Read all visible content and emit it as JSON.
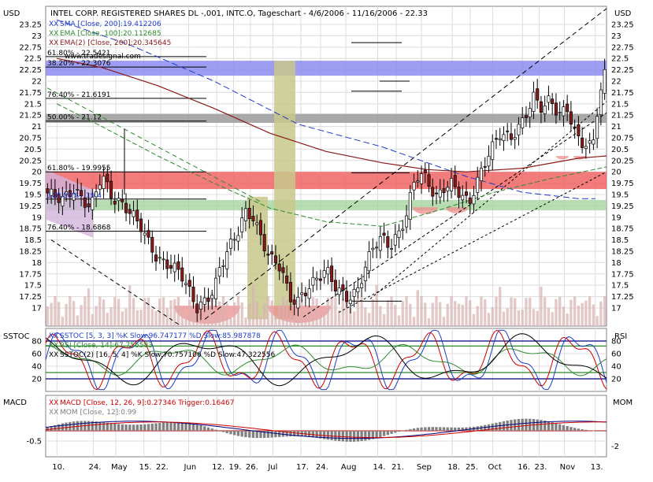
{
  "header": {
    "title": "INTEL CORP. REGISTERED SHARES DL -,001, INTC.O, Tageschart - 4/6/2006 - 11/16/2006 - 22.33",
    "axis_unit_left": "USD",
    "axis_unit_right": "USD",
    "watermark": "www.tradesignal.com"
  },
  "colors": {
    "background": "#ffffff",
    "plot_border": "#808080",
    "grid": "#dcdcdc",
    "up_candle": "#ffffff",
    "down_candle": "#8b1a1a",
    "ema100": "#2e8b2e",
    "ema200": "#8b1a1a",
    "sma200": "#1e3cc8",
    "volume": "#d8b0b0",
    "band_blue": "#8c8cf0",
    "band_red": "#f06464",
    "band_green": "#a8d4a0",
    "band_grey": "#a0a0a0",
    "band_olive": "#c8c88c",
    "band_purple": "#d2b4dc",
    "half_circle": "#f08c8c"
  },
  "fib_levels": [
    {
      "label": "61.80% - 22.5421",
      "value": 22.54
    },
    {
      "label": "38.20% - 22.3076",
      "value": 22.31
    },
    {
      "label": "76.40% - 21.6191",
      "value": 21.62
    },
    {
      "label": "50.00% - 21.12",
      "value": 21.12
    },
    {
      "label": "61.80% - 19.9955",
      "value": 20.0
    },
    {
      "label": "100.00% - 19.4",
      "value": 19.4
    },
    {
      "label": "76.40% - 18.6868",
      "value": 18.69
    }
  ],
  "indicator_labels": {
    "price": [
      {
        "prefix": "XX",
        "text": "SMA [Close, 200]:19.412206",
        "color": "#1e3cc8"
      },
      {
        "prefix": "XX",
        "text": "EMA [Close, 100]:20.112685",
        "color": "#2e8b2e"
      },
      {
        "prefix": "XX",
        "text": "EMA(2) [Close, 200]:20.345645",
        "color": "#8b1a1a"
      }
    ],
    "osc": [
      {
        "prefix": "XX",
        "text": "SSTOC [5, 3, 3] %K Slow:96.747177 %D Slow:85.987878",
        "color": "#1e3cc8"
      },
      {
        "prefix": "XX",
        "text": "RSI [Close, 14]:67.756583",
        "color": "#2e8b2e"
      },
      {
        "prefix": "XX",
        "text": "SSTOC(2) [16, 5, 4] %K Slow:70.757106 %D Slow:47.322556",
        "color": "#000000"
      }
    ],
    "macd": [
      {
        "prefix": "XX",
        "text": "MACD [Close, 12, 26, 9]:0.27346 Trigger:0.16467",
        "color": "#cc0000"
      },
      {
        "prefix": "XX",
        "text": "MOM [Close, 12]:0.99",
        "color": "#808080"
      }
    ]
  },
  "panels": {
    "stoch": {
      "label_left": "SSTOC",
      "label_right": "RSI"
    },
    "macd": {
      "label_left": "MACD",
      "label_right": "MOM"
    }
  },
  "chart_data": {
    "type": "candlestick",
    "title": "INTEL CORP. REGISTERED SHARES DL -,001, INTC.O, Tageschart - 4/6/2006 - 11/16/2006 - 22.33",
    "ylabel": "USD",
    "ylim": [
      16.6,
      23.65
    ],
    "y_ticks": [
      "23.25",
      "23",
      "22.75",
      "22.5",
      "22.25",
      "22",
      "21.75",
      "21.5",
      "21.25",
      "21",
      "20.75",
      "20.5",
      "20.25",
      "20",
      "19.75",
      "19.5",
      "19.25",
      "19",
      "18.75",
      "18.5",
      "18.25",
      "18",
      "17.75",
      "17.5",
      "17.25",
      "17"
    ],
    "x_ticks": [
      {
        "label": "10.",
        "pos": 0.02
      },
      {
        "label": "24.",
        "pos": 0.085
      },
      {
        "label": "May",
        "pos": 0.125
      },
      {
        "label": "15.",
        "pos": 0.175
      },
      {
        "label": "22.",
        "pos": 0.205
      },
      {
        "label": "Jun",
        "pos": 0.255
      },
      {
        "label": "12.",
        "pos": 0.305
      },
      {
        "label": "19.",
        "pos": 0.335
      },
      {
        "label": "26.",
        "pos": 0.365
      },
      {
        "label": "Jul",
        "pos": 0.405
      },
      {
        "label": "17.",
        "pos": 0.455
      },
      {
        "label": "24.",
        "pos": 0.49
      },
      {
        "label": "Aug",
        "pos": 0.535
      },
      {
        "label": "14.",
        "pos": 0.592
      },
      {
        "label": "21.",
        "pos": 0.625
      },
      {
        "label": "Sep",
        "pos": 0.67
      },
      {
        "label": "18.",
        "pos": 0.725
      },
      {
        "label": "25.",
        "pos": 0.757
      },
      {
        "label": "Oct",
        "pos": 0.797
      },
      {
        "label": "16.",
        "pos": 0.85
      },
      {
        "label": "23.",
        "pos": 0.88
      },
      {
        "label": "Nov",
        "pos": 0.925
      },
      {
        "label": "13.",
        "pos": 0.98
      }
    ],
    "price_path": [
      [
        0.0,
        19.55
      ],
      [
        0.03,
        19.4
      ],
      [
        0.05,
        19.6
      ],
      [
        0.08,
        19.2
      ],
      [
        0.1,
        19.95
      ],
      [
        0.12,
        19.4
      ],
      [
        0.14,
        19.25
      ],
      [
        0.155,
        19.05
      ],
      [
        0.17,
        18.8
      ],
      [
        0.185,
        18.4
      ],
      [
        0.2,
        18.05
      ],
      [
        0.22,
        17.95
      ],
      [
        0.24,
        17.8
      ],
      [
        0.255,
        17.4
      ],
      [
        0.27,
        17.0
      ],
      [
        0.285,
        17.15
      ],
      [
        0.3,
        17.4
      ],
      [
        0.31,
        17.85
      ],
      [
        0.325,
        18.3
      ],
      [
        0.34,
        18.6
      ],
      [
        0.355,
        19.1
      ],
      [
        0.37,
        19.0
      ],
      [
        0.385,
        18.5
      ],
      [
        0.4,
        18.1
      ],
      [
        0.42,
        17.9
      ],
      [
        0.435,
        17.2
      ],
      [
        0.45,
        17.15
      ],
      [
        0.465,
        17.4
      ],
      [
        0.48,
        17.6
      ],
      [
        0.5,
        17.85
      ],
      [
        0.52,
        17.4
      ],
      [
        0.54,
        17.2
      ],
      [
        0.555,
        17.35
      ],
      [
        0.57,
        17.9
      ],
      [
        0.585,
        18.4
      ],
      [
        0.6,
        18.55
      ],
      [
        0.615,
        18.35
      ],
      [
        0.63,
        18.65
      ],
      [
        0.645,
        19.1
      ],
      [
        0.655,
        19.75
      ],
      [
        0.665,
        19.95
      ],
      [
        0.68,
        19.85
      ],
      [
        0.695,
        19.4
      ],
      [
        0.71,
        19.65
      ],
      [
        0.725,
        19.75
      ],
      [
        0.74,
        19.5
      ],
      [
        0.755,
        19.3
      ],
      [
        0.77,
        19.8
      ],
      [
        0.79,
        20.4
      ],
      [
        0.81,
        20.85
      ],
      [
        0.83,
        20.75
      ],
      [
        0.85,
        21.1
      ],
      [
        0.87,
        21.65
      ],
      [
        0.885,
        21.4
      ],
      [
        0.9,
        21.6
      ],
      [
        0.915,
        21.25
      ],
      [
        0.93,
        21.4
      ],
      [
        0.945,
        20.8
      ],
      [
        0.96,
        20.6
      ],
      [
        0.975,
        20.55
      ],
      [
        0.985,
        21.5
      ],
      [
        1.0,
        22.33
      ]
    ],
    "series": [
      {
        "name": "SMA [Close, 200]",
        "last": 19.412206
      },
      {
        "name": "EMA [Close, 100]",
        "last": 20.112685
      },
      {
        "name": "EMA(2) [Close, 200]",
        "last": 20.345645
      }
    ],
    "stoch_y_ticks": [
      "80",
      "60",
      "40",
      "20"
    ],
    "macd_y_ticks": [
      "-0.5"
    ],
    "mom_y_ticks": [
      "-2"
    ]
  }
}
